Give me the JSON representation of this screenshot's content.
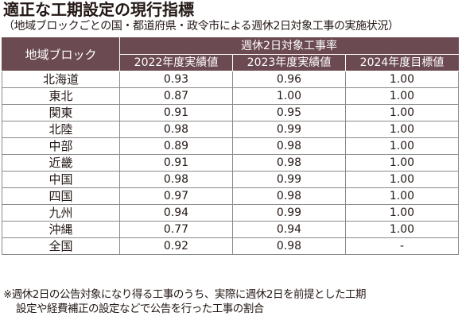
{
  "title": "適正な工期設定の現行指標",
  "subtitle": "（地域ブロックごとの国・都道府県・政令市による週休2日対象工事の実施状況）",
  "table": {
    "region_header": "地域ブロック",
    "group_header": "週休2日対象工事率",
    "columns": [
      "2022年度実績値",
      "2023年度実績値",
      "2024年度目標値"
    ],
    "rows": [
      {
        "region": "北海道",
        "v2022": "0.93",
        "v2023": "0.96",
        "v2024": "1.00"
      },
      {
        "region": "東北",
        "v2022": "0.87",
        "v2023": "1.00",
        "v2024": "1.00"
      },
      {
        "region": "関東",
        "v2022": "0.91",
        "v2023": "0.95",
        "v2024": "1.00"
      },
      {
        "region": "北陸",
        "v2022": "0.98",
        "v2023": "0.99",
        "v2024": "1.00"
      },
      {
        "region": "中部",
        "v2022": "0.89",
        "v2023": "0.98",
        "v2024": "1.00"
      },
      {
        "region": "近畿",
        "v2022": "0.91",
        "v2023": "0.98",
        "v2024": "1.00"
      },
      {
        "region": "中国",
        "v2022": "0.98",
        "v2023": "0.99",
        "v2024": "1.00"
      },
      {
        "region": "四国",
        "v2022": "0.97",
        "v2023": "0.98",
        "v2024": "1.00"
      },
      {
        "region": "九州",
        "v2022": "0.94",
        "v2023": "0.99",
        "v2024": "1.00"
      },
      {
        "region": "沖縄",
        "v2022": "0.77",
        "v2023": "0.94",
        "v2024": "1.00"
      },
      {
        "region": "全国",
        "v2022": "0.92",
        "v2023": "0.98",
        "v2024": "-"
      }
    ]
  },
  "note": {
    "line1": "※週休2日の公告対象になり得る工事のうち、実際に週休2日を前提とした工期",
    "line2": "設定や経費補正の設定などで公告を行った工事の割合"
  },
  "colors": {
    "header_bg": "#6b4a52",
    "header_text": "#ffffff",
    "text": "#231815",
    "border": "#8a8a8a"
  }
}
